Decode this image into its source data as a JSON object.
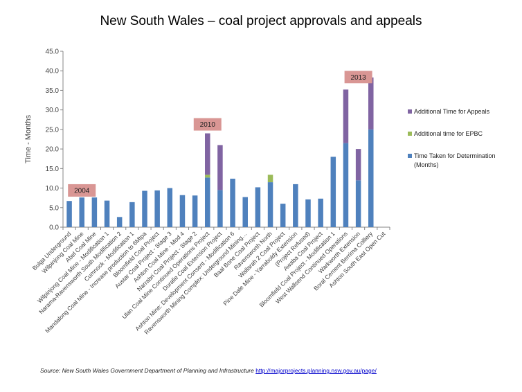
{
  "chart_data": {
    "type": "bar",
    "stacked": true,
    "title": "New South Wales – coal project approvals and appeals",
    "ylabel": "Time - Months",
    "xlabel": "",
    "ylim": [
      0,
      45
    ],
    "yticks": [
      "0.0",
      "5.0",
      "10.0",
      "15.0",
      "20.0",
      "25.0",
      "30.0",
      "35.0",
      "40.0",
      "45.0"
    ],
    "grid": false,
    "legend_position": "right",
    "categories": [
      "Bulga Underground",
      "Wilpinjong Coal Mine",
      "Abel Coal Mine",
      "Wilpinjong Coal Mine - Modification 1",
      "Narama-Ravensworth South Modification 2",
      "Cumnock - Modification 1",
      "Mandalong Coal Mine - Increase production to 6Mtpa",
      "Bloomfield Coal Project",
      "Austar Coal Project - Stage 3",
      "Ashton Coal Mine - Mod 4",
      "Narrabri Coal Project - Stage 2",
      "Ulan Coal Mine Continued Operations Project",
      "Duralie Coal Extension Project",
      "Ashton Mine: Development Consent - Modification 6",
      "Ravensworth Mining Complex: Underground Mining…",
      "Baal Bone Coal Project",
      "Ravensworth North",
      "Wallarah 2 Coal Project",
      "Pine Dale Mine - Yarraboldy Extension",
      "(Project Refused)",
      "Awaba Coal Project",
      "Bloomfield Coal Project - Modification 1",
      "West Wallsend Continued Operations",
      "Warkworth Extension",
      "Boral Cement Berrima Colliery",
      "Ashton South East Open Cut"
    ],
    "series": [
      {
        "name": "Time Taken for Determination (Months)",
        "color": "#4f81bd",
        "values": [
          6.7,
          7.6,
          7.6,
          6.8,
          2.6,
          6.4,
          9.3,
          9.4,
          10.0,
          8.2,
          8.1,
          12.7,
          9.5,
          12.4,
          7.7,
          10.2,
          11.5,
          6.0,
          11.0,
          7.1,
          7.3,
          18.0,
          21.5,
          12.0,
          25.0,
          0
        ]
      },
      {
        "name": "Additional time for EPBC",
        "color": "#9bbb59",
        "values": [
          0,
          0,
          0,
          0,
          0,
          0,
          0,
          0,
          0,
          0,
          0,
          0.7,
          0,
          0,
          0,
          0,
          1.9,
          0,
          0,
          0,
          0,
          0,
          0,
          0,
          0,
          0
        ]
      },
      {
        "name": "Additional Time for Appeals",
        "color": "#8064a2",
        "values": [
          0,
          0,
          0,
          0,
          0,
          0,
          0,
          0,
          0,
          0,
          0,
          10.6,
          11.5,
          0,
          0,
          0,
          0,
          0,
          0,
          0,
          0,
          0,
          13.7,
          8.0,
          13.3,
          0
        ]
      }
    ],
    "annotations": [
      {
        "text": "2004",
        "category_index": 1,
        "y": 9.4
      },
      {
        "text": "2010",
        "category_index": 11,
        "y": 26.3
      },
      {
        "text": "2013",
        "category_index": 23,
        "y": 38.4
      }
    ]
  },
  "legend": {
    "items": [
      {
        "label": "Additional Time for Appeals",
        "color": "#8064a2"
      },
      {
        "label": "Additional time for EPBC",
        "color": "#9bbb59"
      },
      {
        "label": "Time Taken for Determination (Months)",
        "color": "#4f81bd"
      }
    ]
  },
  "source": {
    "prefix": "Source:  New South Wales Government Department of Planning and Infrastructure ",
    "link_text": "http://majorprojects.planning.nsw.gov.au/page/"
  }
}
